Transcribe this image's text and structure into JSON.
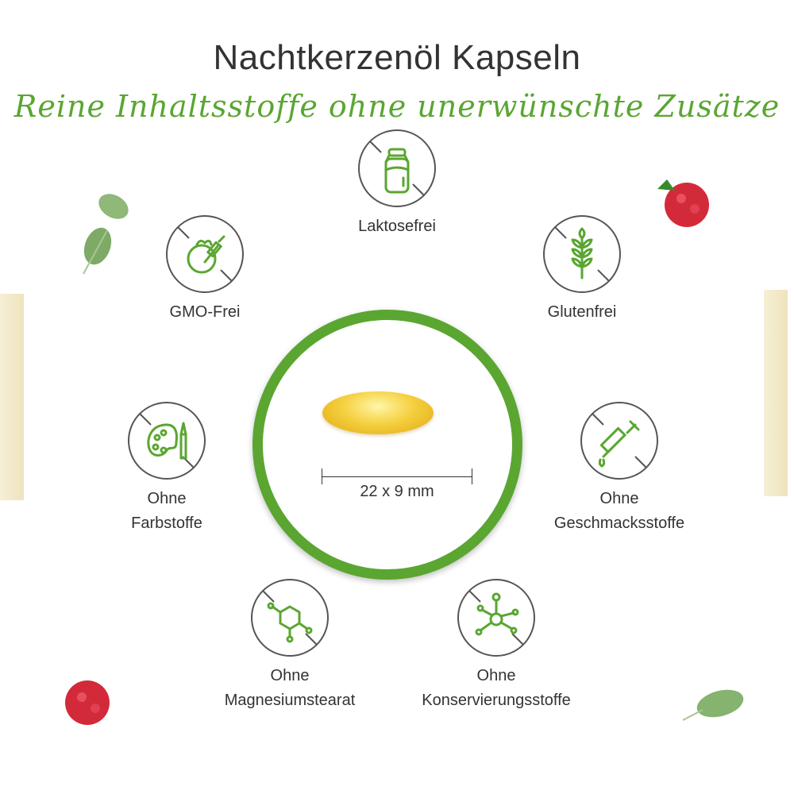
{
  "title": "Nachtkerzenöl Kapseln",
  "subtitle": "Reine Inhaltsstoffe ohne unerwünschte Zusätze",
  "colors": {
    "accent": "#5aa631",
    "text": "#333333",
    "icon_ring": "#555555"
  },
  "center": {
    "dimension": "22 x 9 mm"
  },
  "features": [
    {
      "icon": "milk-bottle-icon",
      "lines": [
        "Laktosefrei"
      ]
    },
    {
      "icon": "gmo-fruit-syringe-icon",
      "lines": [
        "GMO-Frei"
      ]
    },
    {
      "icon": "wheat-icon",
      "lines": [
        "Glutenfrei"
      ]
    },
    {
      "icon": "paint-palette-icon",
      "lines": [
        "Ohne",
        "Farbstoffe"
      ]
    },
    {
      "icon": "flavor-syringe-icon",
      "lines": [
        "Ohne",
        "Geschmacksstoffe"
      ]
    },
    {
      "icon": "molecule-ring-icon",
      "lines": [
        "Ohne",
        "Magnesiumstearat"
      ]
    },
    {
      "icon": "molecule-icon",
      "lines": [
        "Ohne",
        "Konservierungsstoffe"
      ]
    }
  ]
}
